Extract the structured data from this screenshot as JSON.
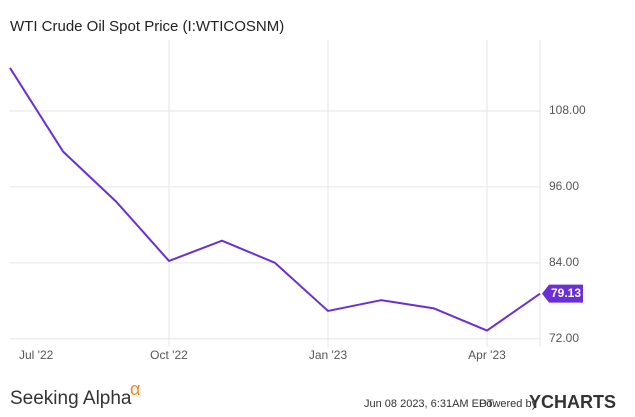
{
  "chart_data": {
    "type": "line",
    "title": "WTI Crude Oil Spot Price (I:WTICOSNM)",
    "categories": [
      "Jul '22",
      null,
      null,
      "Oct '22",
      null,
      null,
      "Jan '23",
      null,
      null,
      "Apr '23",
      null
    ],
    "series": [
      {
        "name": "WTI Crude Oil Spot Price",
        "color": "#6a2fd6",
        "values": [
          114.8,
          101.6,
          93.7,
          84.3,
          87.5,
          84.0,
          76.4,
          78.1,
          76.8,
          73.3,
          79.13
        ]
      }
    ],
    "ylim": [
      70.7,
      118.9
    ],
    "yticks": [
      {
        "value": 72,
        "label": "72.00"
      },
      {
        "value": 84,
        "label": "84.00"
      },
      {
        "value": 96,
        "label": "96.00"
      },
      {
        "value": 108,
        "label": "108.00"
      }
    ],
    "grid": true,
    "last_value_label": "79.13"
  },
  "footer": {
    "brand": "Seeking Alpha",
    "brand_symbol": "α",
    "timestamp": "Jun 08 2023, 6:31AM EDT.",
    "powered": "Powered by",
    "provider": "YCHARTS"
  }
}
